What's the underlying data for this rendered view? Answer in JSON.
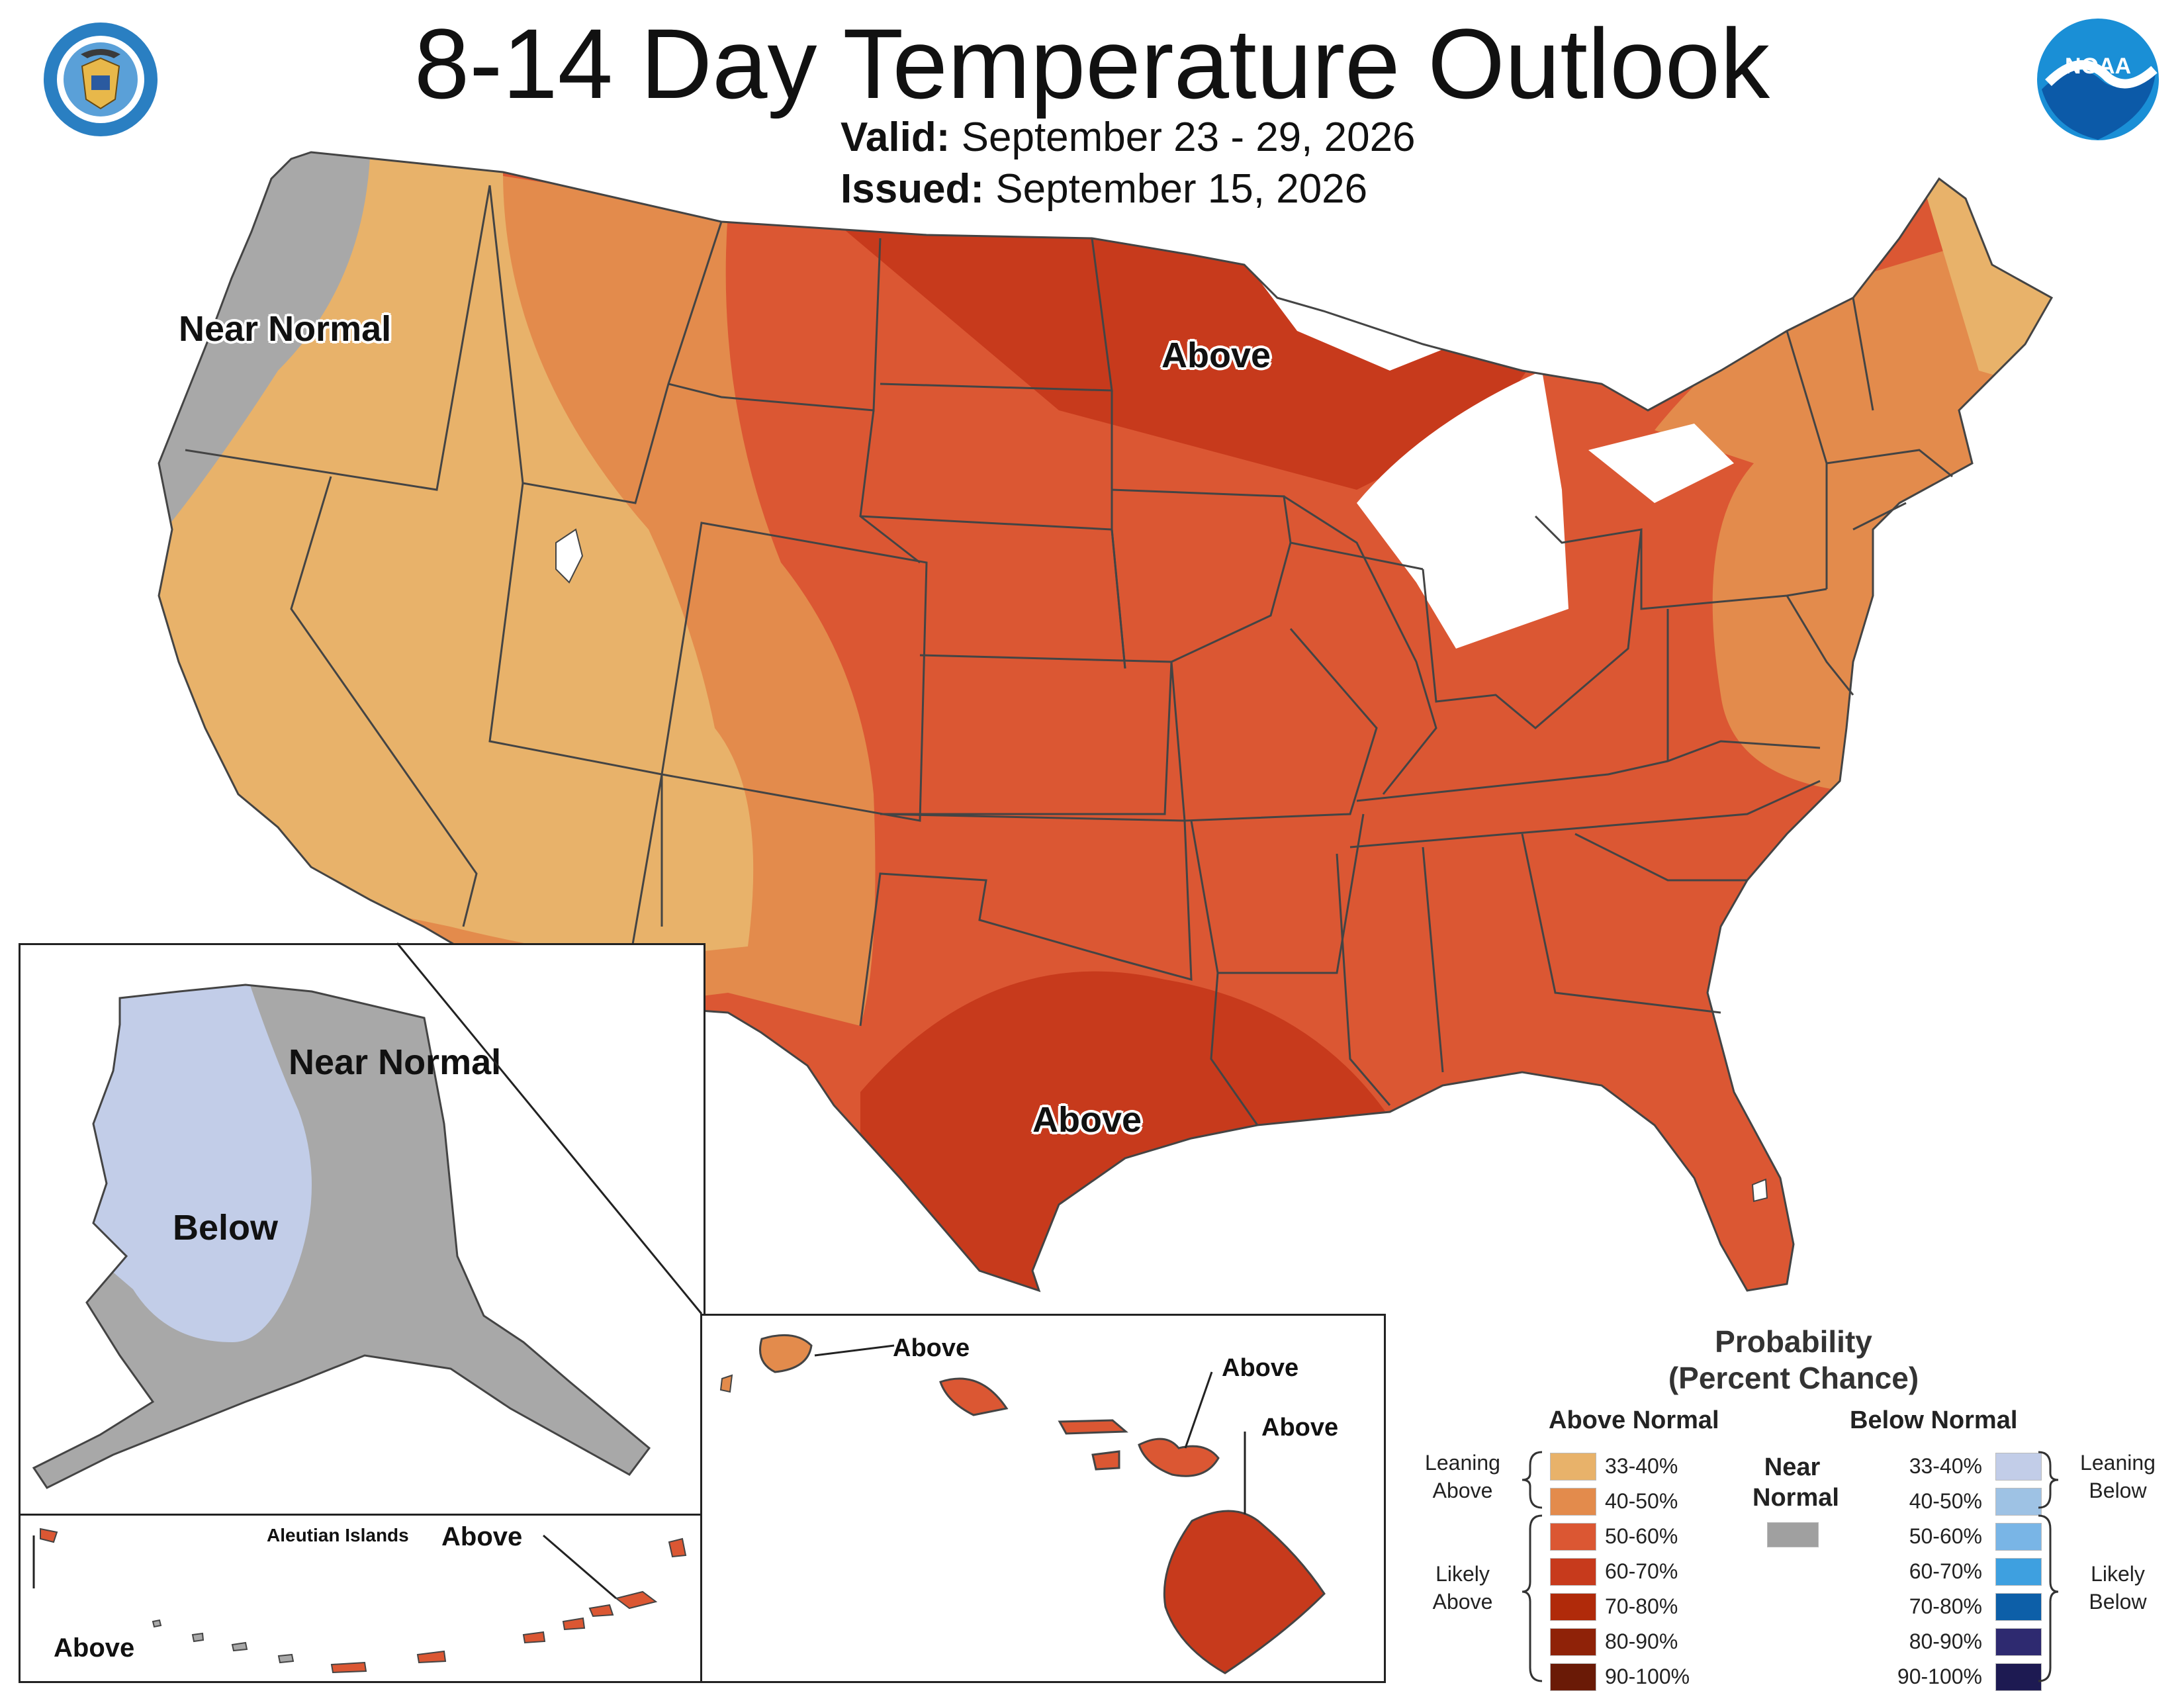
{
  "title": "8-14 Day Temperature Outlook",
  "valid_label": "Valid:",
  "valid_value": "September 23 - 29, 2026",
  "issued_label": "Issued:",
  "issued_value": "September 15, 2026",
  "logos": {
    "left": "department-of-commerce-seal",
    "right": "noaa-logo",
    "noaa_text": "NOAA"
  },
  "map_labels": {
    "conus_near_normal": "Near Normal",
    "conus_above_north": "Above",
    "conus_above_south": "Above",
    "alaska_near_normal": "Near Normal",
    "alaska_below": "Below",
    "aleutian_title": "Aleutian Islands",
    "aleutian_above_right": "Above",
    "aleutian_above_left": "Above",
    "hawaii_above_1": "Above",
    "hawaii_above_2": "Above",
    "hawaii_above_3": "Above"
  },
  "legend": {
    "title_line1": "Probability",
    "title_line2": "(Percent Chance)",
    "above_head": "Above Normal",
    "below_head": "Below Normal",
    "near_head_1": "Near",
    "near_head_2": "Normal",
    "near_color": "#a0a0a0",
    "leaning_above_1": "Leaning",
    "leaning_above_2": "Above",
    "likely_above_1": "Likely",
    "likely_above_2": "Above",
    "leaning_below_1": "Leaning",
    "leaning_below_2": "Below",
    "likely_below_1": "Likely",
    "likely_below_2": "Below",
    "above": [
      {
        "range": "33-40%",
        "color": "#e8b26a"
      },
      {
        "range": "40-50%",
        "color": "#e38b4c"
      },
      {
        "range": "50-60%",
        "color": "#db5733"
      },
      {
        "range": "60-70%",
        "color": "#c73a1c"
      },
      {
        "range": "70-80%",
        "color": "#b02a0a"
      },
      {
        "range": "80-90%",
        "color": "#8f2208"
      },
      {
        "range": "90-100%",
        "color": "#6a1a06"
      }
    ],
    "below": [
      {
        "range": "33-40%",
        "color": "#c2cde8"
      },
      {
        "range": "40-50%",
        "color": "#9ec2e4"
      },
      {
        "range": "50-60%",
        "color": "#79b5e6"
      },
      {
        "range": "60-70%",
        "color": "#3ea0e0"
      },
      {
        "range": "70-80%",
        "color": "#0d5fa8"
      },
      {
        "range": "80-90%",
        "color": "#2e2a70"
      },
      {
        "range": "90-100%",
        "color": "#1d1a52"
      }
    ]
  }
}
